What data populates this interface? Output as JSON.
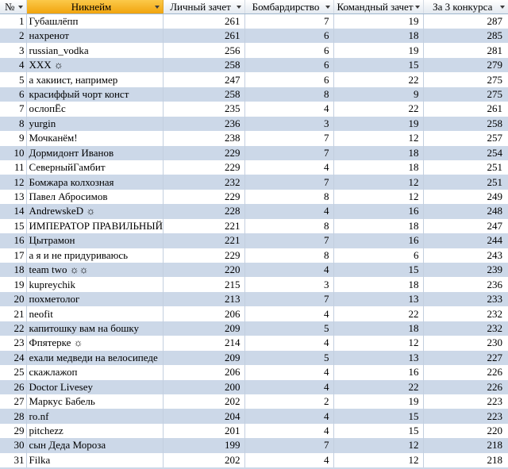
{
  "table": {
    "columns": [
      {
        "label": "№"
      },
      {
        "label": "Никнейм"
      },
      {
        "label": "Личный зачет"
      },
      {
        "label": "Бомбардирство"
      },
      {
        "label": "Командный зачет"
      },
      {
        "label": "За 3 конкурса"
      }
    ],
    "rows": [
      {
        "num": 1,
        "nickname": "Губашлёпп",
        "personal": 261,
        "bombing": 7,
        "team": 19,
        "total": 287
      },
      {
        "num": 2,
        "nickname": "нахренот",
        "personal": 261,
        "bombing": 6,
        "team": 18,
        "total": 285
      },
      {
        "num": 3,
        "nickname": "russian_vodka",
        "personal": 256,
        "bombing": 6,
        "team": 19,
        "total": 281
      },
      {
        "num": 4,
        "nickname": "XXX ☼",
        "personal": 258,
        "bombing": 6,
        "team": 15,
        "total": 279
      },
      {
        "num": 5,
        "nickname": "а хакиист, например",
        "personal": 247,
        "bombing": 6,
        "team": 22,
        "total": 275
      },
      {
        "num": 6,
        "nickname": "красиффый чорт конст",
        "personal": 258,
        "bombing": 8,
        "team": 9,
        "total": 275
      },
      {
        "num": 7,
        "nickname": "ослопЁс",
        "personal": 235,
        "bombing": 4,
        "team": 22,
        "total": 261
      },
      {
        "num": 8,
        "nickname": "yurgin",
        "personal": 236,
        "bombing": 3,
        "team": 19,
        "total": 258
      },
      {
        "num": 9,
        "nickname": "Мочканём!",
        "personal": 238,
        "bombing": 7,
        "team": 12,
        "total": 257
      },
      {
        "num": 10,
        "nickname": "Дормидонт Иванов",
        "personal": 229,
        "bombing": 7,
        "team": 18,
        "total": 254
      },
      {
        "num": 11,
        "nickname": "СеверныйГамбит",
        "personal": 229,
        "bombing": 4,
        "team": 18,
        "total": 251
      },
      {
        "num": 12,
        "nickname": "Бомжара колхозная",
        "personal": 232,
        "bombing": 7,
        "team": 12,
        "total": 251
      },
      {
        "num": 13,
        "nickname": "Павел Абросимов",
        "personal": 229,
        "bombing": 8,
        "team": 12,
        "total": 249
      },
      {
        "num": 14,
        "nickname": "AndrewskeD ☼",
        "personal": 228,
        "bombing": 4,
        "team": 16,
        "total": 248
      },
      {
        "num": 15,
        "nickname": "ИМПЕРАТОР ПРАВИЛЬНЫЙ",
        "personal": 221,
        "bombing": 8,
        "team": 18,
        "total": 247
      },
      {
        "num": 16,
        "nickname": "Цытрамон",
        "personal": 221,
        "bombing": 7,
        "team": 16,
        "total": 244
      },
      {
        "num": 17,
        "nickname": "а я и не придуриваюсь",
        "personal": 229,
        "bombing": 8,
        "team": 6,
        "total": 243
      },
      {
        "num": 18,
        "nickname": "team two ☼☼",
        "personal": 220,
        "bombing": 4,
        "team": 15,
        "total": 239
      },
      {
        "num": 19,
        "nickname": "kupreychik",
        "personal": 215,
        "bombing": 3,
        "team": 18,
        "total": 236
      },
      {
        "num": 20,
        "nickname": "похметолог",
        "personal": 213,
        "bombing": 7,
        "team": 13,
        "total": 233
      },
      {
        "num": 21,
        "nickname": "neofit",
        "personal": 206,
        "bombing": 4,
        "team": 22,
        "total": 232
      },
      {
        "num": 22,
        "nickname": "капитошку вам на бошку",
        "personal": 209,
        "bombing": 5,
        "team": 18,
        "total": 232
      },
      {
        "num": 23,
        "nickname": "Фпятерке ☼",
        "personal": 214,
        "bombing": 4,
        "team": 12,
        "total": 230
      },
      {
        "num": 24,
        "nickname": "ехали медведи на велосипеде",
        "personal": 209,
        "bombing": 5,
        "team": 13,
        "total": 227
      },
      {
        "num": 25,
        "nickname": "скажлажоп",
        "personal": 206,
        "bombing": 4,
        "team": 16,
        "total": 226
      },
      {
        "num": 26,
        "nickname": "Doctor Livesey",
        "personal": 200,
        "bombing": 4,
        "team": 22,
        "total": 226
      },
      {
        "num": 27,
        "nickname": "Маркус Бабель",
        "personal": 202,
        "bombing": 2,
        "team": 19,
        "total": 223
      },
      {
        "num": 28,
        "nickname": "ro.nf",
        "personal": 204,
        "bombing": 4,
        "team": 15,
        "total": 223
      },
      {
        "num": 29,
        "nickname": "pitchezz",
        "personal": 201,
        "bombing": 4,
        "team": 15,
        "total": 220
      },
      {
        "num": 30,
        "nickname": "сын Деда Мороза",
        "personal": 199,
        "bombing": 7,
        "team": 12,
        "total": 218
      },
      {
        "num": 31,
        "nickname": "Filka",
        "personal": 202,
        "bombing": 4,
        "team": 12,
        "total": 218
      }
    ]
  },
  "icons": {
    "filter_dropdown": "triangle-down ▾"
  },
  "colors": {
    "nickname_header_top": "#fbc94a",
    "nickname_header_bottom": "#f1a40e",
    "band_row": "#ccd8e8",
    "plain_row": "#ffffff",
    "grid_line": "#c3cfdf",
    "header_border_bottom": "#9eb6ce",
    "text": "#000000"
  }
}
